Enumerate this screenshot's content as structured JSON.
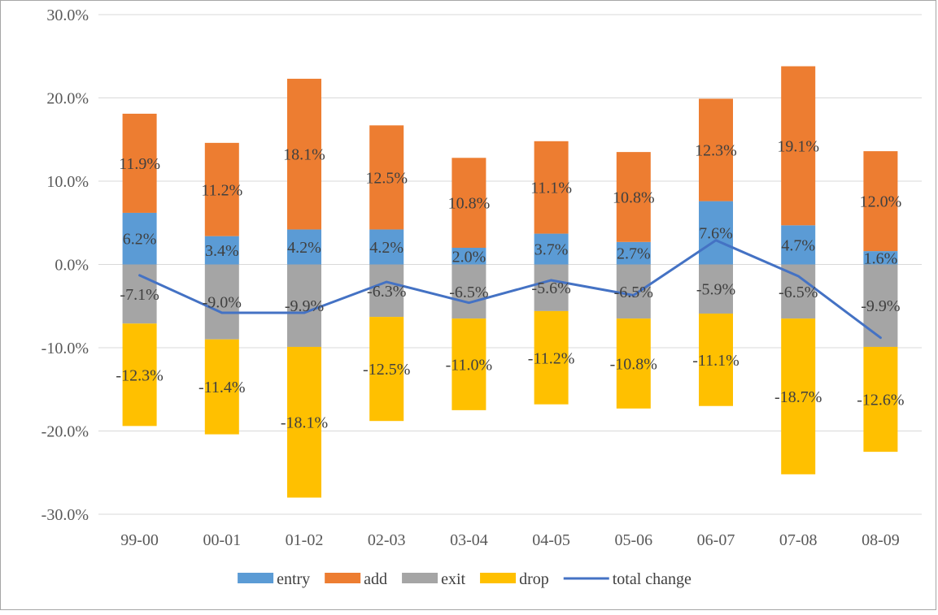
{
  "chart_data": {
    "type": "bar",
    "stacked": true,
    "title": "",
    "xlabel": "",
    "ylabel": "",
    "ylim": [
      -30,
      30
    ],
    "y_ticks": [
      30,
      20,
      10,
      0,
      -10,
      -20,
      -30
    ],
    "y_tick_labels": [
      "30.0%",
      "20.0%",
      "10.0%",
      "0.0%",
      "-10.0%",
      "-20.0%",
      "-30.0%"
    ],
    "grid": true,
    "legend_position": "bottom",
    "categories": [
      "99-00",
      "00-01",
      "01-02",
      "02-03",
      "03-04",
      "04-05",
      "05-06",
      "06-07",
      "07-08",
      "08-09"
    ],
    "series": [
      {
        "name": "entry",
        "kind": "bar",
        "color": "#5b9bd5",
        "values": [
          6.2,
          3.4,
          4.2,
          4.2,
          2.0,
          3.7,
          2.7,
          7.6,
          4.7,
          1.6
        ],
        "labels": [
          "6.2%",
          "3.4%",
          "4.2%",
          "4.2%",
          "2.0%",
          "3.7%",
          "2.7%",
          "7.6%",
          "4.7%",
          "1.6%"
        ]
      },
      {
        "name": "add",
        "kind": "bar",
        "color": "#ed7d31",
        "values": [
          11.9,
          11.2,
          18.1,
          12.5,
          10.8,
          11.1,
          10.8,
          12.3,
          19.1,
          12.0
        ],
        "labels": [
          "11.9%",
          "11.2%",
          "18.1%",
          "12.5%",
          "10.8%",
          "11.1%",
          "10.8%",
          "12.3%",
          "19.1%",
          "12.0%"
        ]
      },
      {
        "name": "exit",
        "kind": "bar",
        "color": "#a5a5a5",
        "values": [
          -7.1,
          -9.0,
          -9.9,
          -6.3,
          -6.5,
          -5.6,
          -6.5,
          -5.9,
          -6.5,
          -9.9
        ],
        "labels": [
          "-7.1%",
          "-9.0%",
          "-9.9%",
          "-6.3%",
          "-6.5%",
          "-5.6%",
          "-6.5%",
          "-5.9%",
          "-6.5%",
          "-9.9%"
        ]
      },
      {
        "name": "drop",
        "kind": "bar",
        "color": "#ffc000",
        "values": [
          -12.3,
          -11.4,
          -18.1,
          -12.5,
          -11.0,
          -11.2,
          -10.8,
          -11.1,
          -18.7,
          -12.6
        ],
        "labels": [
          "-12.3%",
          "-11.4%",
          "-18.1%",
          "-12.5%",
          "-11.0%",
          "-11.2%",
          "-10.8%",
          "-11.1%",
          "-18.7%",
          "-12.6%"
        ]
      },
      {
        "name": "total change",
        "kind": "line",
        "color": "#4472c4",
        "values": [
          -1.3,
          -5.8,
          -5.8,
          -2.1,
          -4.6,
          -1.9,
          -3.7,
          2.9,
          -1.4,
          -8.8
        ]
      }
    ]
  }
}
